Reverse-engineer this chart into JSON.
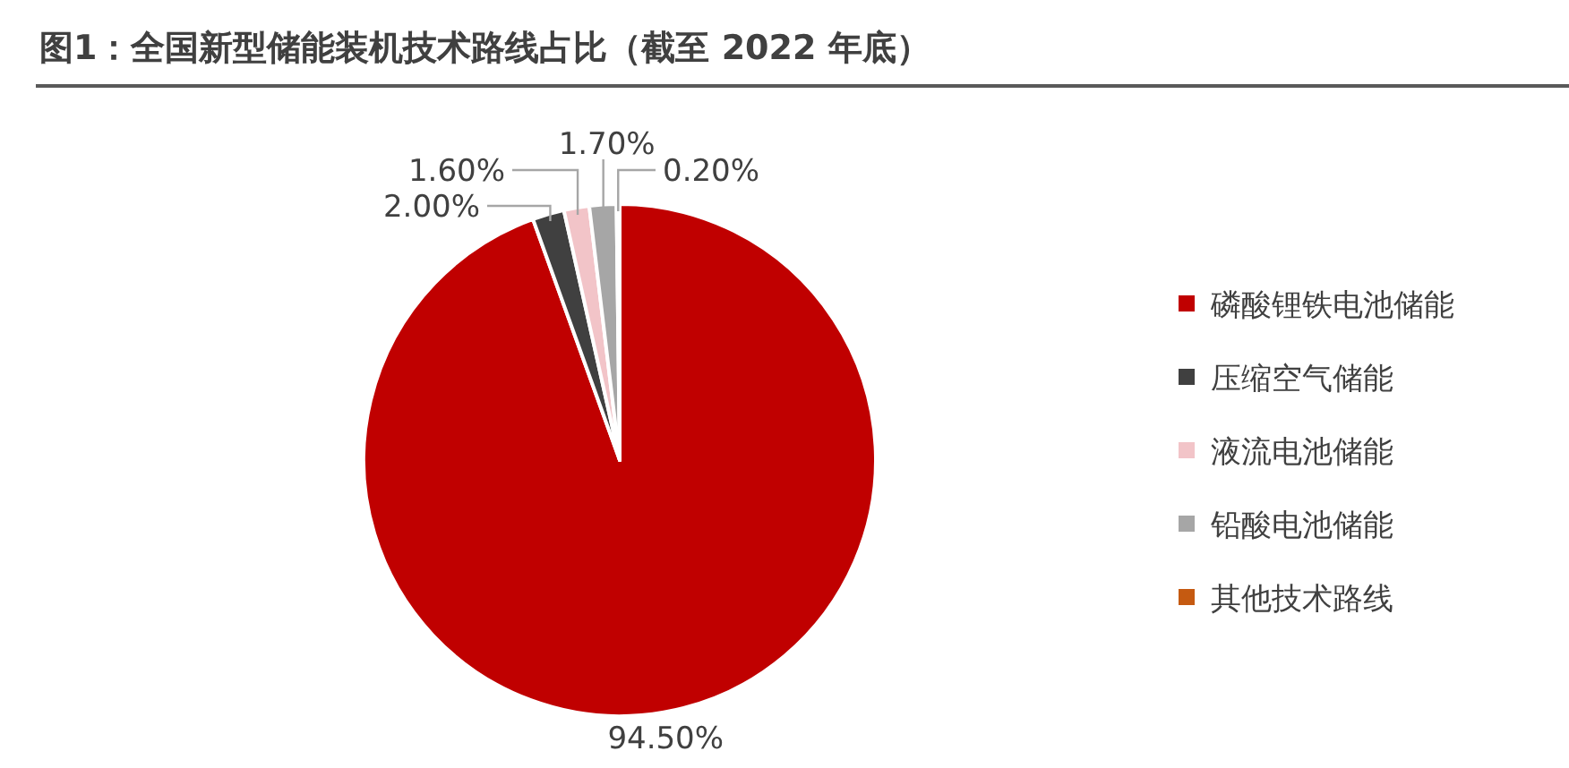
{
  "chart_data": {
    "type": "pie",
    "title": "图1：全国新型储能装机技术路线占比（截至 2022 年底）",
    "categories": [
      "磷酸锂铁电池储能",
      "压缩空气储能",
      "液流电池储能",
      "铅酸电池储能",
      "其他技术路线"
    ],
    "values": [
      94.5,
      2.0,
      1.6,
      1.7,
      0.2
    ],
    "colors": [
      "#c00000",
      "#404040",
      "#f2c4c8",
      "#a6a6a6",
      "#c55a11"
    ],
    "value_labels": [
      "94.50%",
      "2.00%",
      "1.60%",
      "1.70%",
      "0.20%"
    ],
    "legend": "right"
  }
}
